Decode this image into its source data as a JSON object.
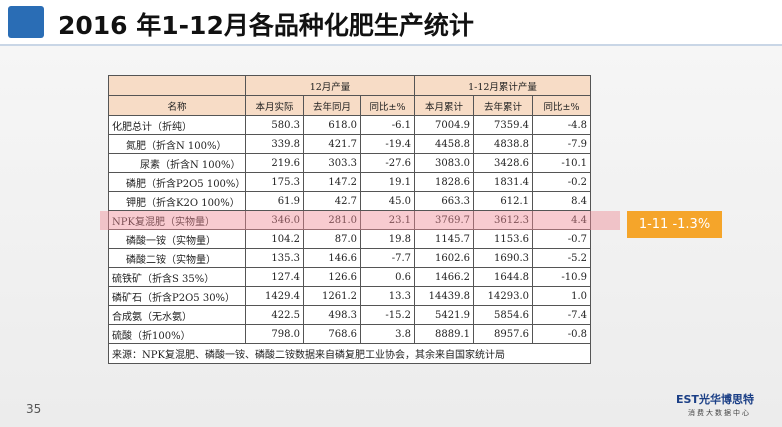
{
  "header": {
    "title": "2016 年1-12月各品种化肥生产统计"
  },
  "table": {
    "group_headers": [
      "12月产量",
      "1-12月累计产量"
    ],
    "columns": [
      "名称",
      "本月实际",
      "去年同月",
      "同比±%",
      "本月累计",
      "去年累计",
      "同比±%"
    ],
    "rows": [
      [
        "化肥总计（折纯）",
        "580.3",
        "618.0",
        "-6.1",
        "7004.9",
        "7359.4",
        "-4.8"
      ],
      [
        "氮肥（折含N 100%）",
        "339.8",
        "421.7",
        "-19.4",
        "4458.8",
        "4838.8",
        "-7.9"
      ],
      [
        "尿素（折含N 100%）",
        "219.6",
        "303.3",
        "-27.6",
        "3083.0",
        "3428.6",
        "-10.1"
      ],
      [
        "磷肥（折含P2O5 100%）",
        "175.3",
        "147.2",
        "19.1",
        "1828.6",
        "1831.4",
        "-0.2"
      ],
      [
        "钾肥（折含K2O 100%）",
        "61.9",
        "42.7",
        "45.0",
        "663.3",
        "612.1",
        "8.4"
      ],
      [
        "NPK复混肥（实物量）",
        "346.0",
        "281.0",
        "23.1",
        "3769.7",
        "3612.3",
        "4.4"
      ],
      [
        "磷酸一铵（实物量）",
        "104.2",
        "87.0",
        "19.8",
        "1145.7",
        "1153.6",
        "-0.7"
      ],
      [
        "磷酸二铵（实物量）",
        "135.3",
        "146.6",
        "-7.7",
        "1602.6",
        "1690.3",
        "-5.2"
      ],
      [
        "硫铁矿（折含S 35%）",
        "127.4",
        "126.6",
        "0.6",
        "1466.2",
        "1644.8",
        "-10.9"
      ],
      [
        "磷矿石（折含P2O5 30%）",
        "1429.4",
        "1261.2",
        "13.3",
        "14439.8",
        "14293.0",
        "1.0"
      ],
      [
        "合成氨（无水氨）",
        "422.5",
        "498.3",
        "-15.2",
        "5421.9",
        "5854.6",
        "-7.4"
      ],
      [
        "硫酸（折100%）",
        "798.0",
        "768.6",
        "3.8",
        "8889.1",
        "8957.6",
        "-0.8"
      ]
    ],
    "footnote": "来源：NPK复混肥、磷酸一铵、磷酸二铵数据来自磷复肥工业协会，其余来自国家统计局"
  },
  "callout": "1-11 -1.3%",
  "page_number": "35",
  "logo": {
    "name": "EST光华博思特",
    "subtitle": "消费大数据中心"
  }
}
